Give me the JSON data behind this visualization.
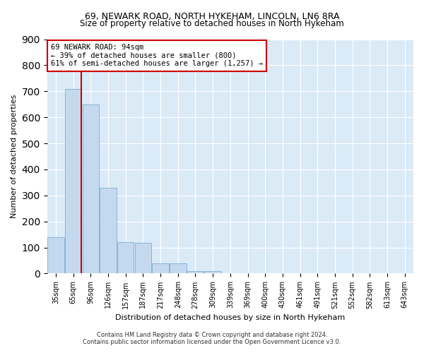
{
  "title1": "69, NEWARK ROAD, NORTH HYKEHAM, LINCOLN, LN6 8RA",
  "title2": "Size of property relative to detached houses in North Hykeham",
  "xlabel": "Distribution of detached houses by size in North Hykeham",
  "ylabel": "Number of detached properties",
  "bar_color": "#c5d9ee",
  "bar_edge_color": "#7aadd4",
  "background_color": "#daeaf7",
  "categories": [
    "35sqm",
    "65sqm",
    "96sqm",
    "126sqm",
    "157sqm",
    "187sqm",
    "217sqm",
    "248sqm",
    "278sqm",
    "309sqm",
    "339sqm",
    "369sqm",
    "400sqm",
    "430sqm",
    "461sqm",
    "491sqm",
    "521sqm",
    "552sqm",
    "582sqm",
    "613sqm",
    "643sqm"
  ],
  "values": [
    140,
    710,
    650,
    330,
    120,
    118,
    40,
    40,
    10,
    10,
    0,
    0,
    0,
    0,
    0,
    0,
    0,
    0,
    0,
    0,
    0
  ],
  "vline_color": "#cc0000",
  "vline_x": 1.45,
  "annotation_line1": "69 NEWARK ROAD: 94sqm",
  "annotation_line2": "← 39% of detached houses are smaller (800)",
  "annotation_line3": "61% of semi-detached houses are larger (1,257) →",
  "annotation_box_color": "#ffffff",
  "annotation_border_color": "#cc0000",
  "ylim": [
    0,
    900
  ],
  "yticks": [
    0,
    100,
    200,
    300,
    400,
    500,
    600,
    700,
    800,
    900
  ],
  "footer1": "Contains HM Land Registry data © Crown copyright and database right 2024.",
  "footer2": "Contains public sector information licensed under the Open Government Licence v3.0.",
  "title1_fontsize": 9,
  "title2_fontsize": 8.5,
  "ylabel_fontsize": 8,
  "xlabel_fontsize": 8,
  "tick_fontsize": 7,
  "annotation_fontsize": 7.5,
  "footer_fontsize": 6
}
